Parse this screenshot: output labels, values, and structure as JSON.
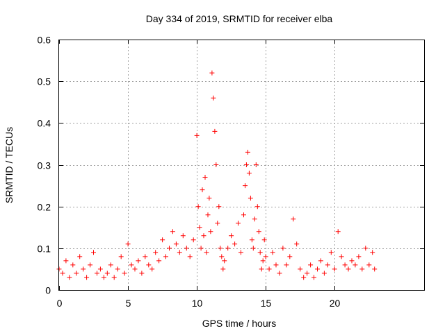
{
  "chart_data": {
    "type": "scatter",
    "title": "Day 334 of 2019, SRMTID for receiver elba",
    "xlabel": "GPS time / hours",
    "ylabel": "SRMTID / TECUs",
    "xlim": [
      0,
      26.5
    ],
    "ylim": [
      0,
      0.6
    ],
    "xticks": [
      0,
      5,
      10,
      15,
      20
    ],
    "xtick_labels": [
      "0",
      "5",
      "10",
      "15",
      "20"
    ],
    "yticks": [
      0,
      0.1,
      0.2,
      0.3,
      0.4,
      0.5,
      0.6
    ],
    "ytick_labels": [
      "0",
      "0.1",
      "0.2",
      "0.3",
      "0.4",
      "0.5",
      "0.6"
    ],
    "grid": true,
    "marker": "+",
    "color": "#ff0000",
    "series": [
      {
        "name": "SRMTID",
        "x": [
          0.0,
          0.25,
          0.5,
          0.75,
          1.0,
          1.25,
          1.5,
          1.75,
          2.0,
          2.25,
          2.5,
          2.75,
          3.0,
          3.25,
          3.5,
          3.75,
          4.0,
          4.25,
          4.5,
          4.75,
          5.0,
          5.25,
          5.5,
          5.75,
          6.0,
          6.25,
          6.5,
          6.75,
          7.0,
          7.25,
          7.5,
          7.75,
          8.0,
          8.25,
          8.5,
          8.75,
          9.0,
          9.25,
          9.5,
          9.75,
          10.0,
          10.1,
          10.2,
          10.3,
          10.4,
          10.5,
          10.6,
          10.7,
          10.8,
          10.9,
          11.0,
          11.1,
          11.2,
          11.3,
          11.4,
          11.5,
          11.6,
          11.7,
          11.8,
          11.9,
          12.0,
          12.25,
          12.5,
          12.75,
          13.0,
          13.2,
          13.4,
          13.5,
          13.6,
          13.7,
          13.8,
          13.9,
          14.0,
          14.1,
          14.2,
          14.3,
          14.4,
          14.5,
          14.6,
          14.7,
          14.8,
          14.9,
          15.0,
          15.25,
          15.5,
          15.75,
          16.0,
          16.25,
          16.5,
          16.75,
          17.0,
          17.25,
          17.5,
          17.75,
          18.0,
          18.25,
          18.5,
          18.75,
          19.0,
          19.25,
          19.5,
          19.75,
          20.0,
          20.25,
          20.5,
          20.75,
          21.0,
          21.25,
          21.5,
          21.75,
          22.0,
          22.25,
          22.5,
          22.75,
          22.9
        ],
        "y": [
          0.05,
          0.04,
          0.07,
          0.03,
          0.06,
          0.04,
          0.08,
          0.05,
          0.03,
          0.06,
          0.09,
          0.04,
          0.05,
          0.03,
          0.04,
          0.06,
          0.03,
          0.05,
          0.08,
          0.04,
          0.11,
          0.06,
          0.05,
          0.07,
          0.04,
          0.08,
          0.06,
          0.05,
          0.09,
          0.07,
          0.12,
          0.08,
          0.1,
          0.14,
          0.11,
          0.09,
          0.13,
          0.1,
          0.08,
          0.12,
          0.37,
          0.2,
          0.15,
          0.1,
          0.24,
          0.13,
          0.27,
          0.09,
          0.18,
          0.22,
          0.14,
          0.52,
          0.46,
          0.38,
          0.3,
          0.16,
          0.2,
          0.1,
          0.08,
          0.05,
          0.07,
          0.1,
          0.13,
          0.11,
          0.16,
          0.09,
          0.18,
          0.25,
          0.3,
          0.33,
          0.28,
          0.22,
          0.12,
          0.1,
          0.17,
          0.3,
          0.2,
          0.14,
          0.09,
          0.05,
          0.07,
          0.12,
          0.08,
          0.05,
          0.09,
          0.06,
          0.04,
          0.1,
          0.06,
          0.08,
          0.17,
          0.11,
          0.05,
          0.03,
          0.04,
          0.06,
          0.03,
          0.05,
          0.07,
          0.04,
          0.06,
          0.09,
          0.05,
          0.14,
          0.08,
          0.06,
          0.05,
          0.07,
          0.06,
          0.08,
          0.05,
          0.1,
          0.06,
          0.09,
          0.05
        ]
      }
    ]
  }
}
